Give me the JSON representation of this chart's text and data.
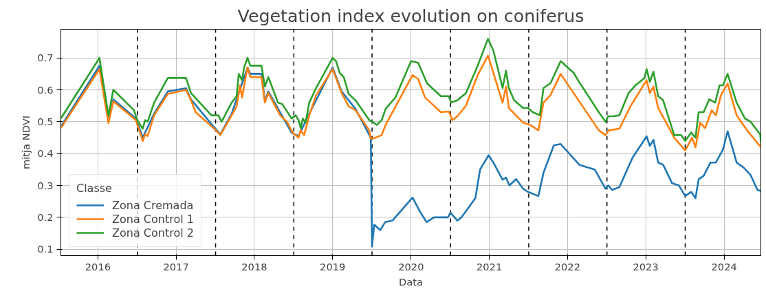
{
  "chart_data": {
    "type": "line",
    "title": "Vegetation index evolution on coniferus",
    "xlabel": "Data",
    "ylabel": "mitja NDVI",
    "legend_title": "Classe",
    "legend": "bottom left",
    "grid": true,
    "line_style": "solid",
    "xlim": [
      "2016-01-10",
      "2024-12-19"
    ],
    "ylim": [
      0.08,
      0.79
    ],
    "yticks": [
      0.1,
      0.2,
      0.3,
      0.4,
      0.5,
      0.6,
      0.7
    ],
    "xticks": [
      {
        "value": "2016-07-01",
        "label": "2016"
      },
      {
        "value": "2017-07-01",
        "label": "2017"
      },
      {
        "value": "2018-07-01",
        "label": "2018"
      },
      {
        "value": "2019-07-01",
        "label": "2019"
      },
      {
        "value": "2020-07-01",
        "label": "2020"
      },
      {
        "value": "2021-07-01",
        "label": "2021"
      },
      {
        "value": "2022-07-01",
        "label": "2022"
      },
      {
        "value": "2023-07-01",
        "label": "2023"
      },
      {
        "value": "2024-07-01",
        "label": "2024"
      }
    ],
    "ref_lines": [
      {
        "axis": "x",
        "value": "2017-01-01",
        "color": "#000000",
        "line_style": "dashed"
      },
      {
        "axis": "x",
        "value": "2018-01-01",
        "color": "#000000",
        "line_style": "dashed"
      },
      {
        "axis": "x",
        "value": "2019-01-01",
        "color": "#000000",
        "line_style": "dashed"
      },
      {
        "axis": "x",
        "value": "2020-01-01",
        "color": "#000000",
        "line_style": "dashed"
      },
      {
        "axis": "x",
        "value": "2021-01-01",
        "color": "#000000",
        "line_style": "dashed"
      },
      {
        "axis": "x",
        "value": "2022-01-01",
        "color": "#000000",
        "line_style": "dashed"
      },
      {
        "axis": "x",
        "value": "2023-01-01",
        "color": "#000000",
        "line_style": "dashed"
      },
      {
        "axis": "x",
        "value": "2024-01-01",
        "color": "#000000",
        "line_style": "dashed"
      }
    ],
    "series": [
      {
        "name": "Zona Cremada",
        "color": "#1f77b4",
        "x": [
          "2016-01-10",
          "2016-07-08",
          "2016-08-19",
          "2016-09-11",
          "2016-12-25",
          "2017-01-26",
          "2017-03-20",
          "2017-05-23",
          "2017-08-16",
          "2017-09-08",
          "2017-12-22",
          "2018-01-23",
          "2018-03-17",
          "2018-05-30",
          "2018-06-12",
          "2018-08-03",
          "2018-08-19",
          "2018-09-04",
          "2018-12-22",
          "2019-01-23",
          "2019-03-14",
          "2019-07-01",
          "2019-08-12",
          "2019-10-16",
          "2019-12-26",
          "2020-01-01",
          "2020-01-11",
          "2020-01-23",
          "2020-02-08",
          "2020-03-02",
          "2020-04-05",
          "2020-07-08",
          "2020-08-10",
          "2020-09-11",
          "2020-10-16",
          "2020-12-20",
          "2021-01-01",
          "2021-02-02",
          "2021-02-21",
          "2021-04-27",
          "2021-05-19",
          "2021-06-28",
          "2021-07-20",
          "2021-09-01",
          "2021-09-17",
          "2021-10-03",
          "2021-11-03",
          "2021-12-06",
          "2021-12-28",
          "2022-02-15",
          "2022-03-11",
          "2022-04-28",
          "2022-05-30",
          "2022-08-25",
          "2022-11-05",
          "2022-12-25",
          "2023-01-07",
          "2023-01-26",
          "2023-02-28",
          "2023-05-01",
          "2023-07-05",
          "2023-07-20",
          "2023-08-06",
          "2023-08-28",
          "2023-09-20",
          "2023-11-01",
          "2023-12-03",
          "2024-01-01",
          "2024-01-29",
          "2024-02-18",
          "2024-03-04",
          "2024-03-27",
          "2024-04-28",
          "2024-05-23",
          "2024-06-25",
          "2024-07-17",
          "2024-08-28",
          "2024-09-30",
          "2024-11-01",
          "2024-12-03",
          "2024-12-19"
        ],
        "values": [
          0.485,
          0.675,
          0.5,
          0.57,
          0.51,
          0.45,
          0.525,
          0.595,
          0.605,
          0.57,
          0.485,
          0.46,
          0.525,
          0.67,
          0.65,
          0.65,
          0.565,
          0.595,
          0.465,
          0.455,
          0.525,
          0.67,
          0.595,
          0.54,
          0.45,
          0.11,
          0.177,
          0.17,
          0.16,
          0.185,
          0.19,
          0.262,
          0.22,
          0.185,
          0.2,
          0.2,
          0.215,
          0.19,
          0.2,
          0.26,
          0.35,
          0.395,
          0.372,
          0.318,
          0.325,
          0.3,
          0.32,
          0.29,
          0.28,
          0.267,
          0.34,
          0.426,
          0.43,
          0.365,
          0.35,
          0.29,
          0.3,
          0.286,
          0.295,
          0.388,
          0.454,
          0.424,
          0.443,
          0.372,
          0.365,
          0.307,
          0.3,
          0.267,
          0.28,
          0.26,
          0.32,
          0.33,
          0.372,
          0.372,
          0.412,
          0.47,
          0.372,
          0.356,
          0.333,
          0.286,
          0.283
        ]
      },
      {
        "name": "Zona Control 1",
        "color": "#ff7f0e",
        "x": [
          "2016-01-10",
          "2016-07-08",
          "2016-08-19",
          "2016-09-11",
          "2016-12-25",
          "2017-01-26",
          "2017-02-06",
          "2017-02-18",
          "2017-03-20",
          "2017-05-23",
          "2017-08-16",
          "2017-09-08",
          "2017-09-30",
          "2017-12-22",
          "2018-01-23",
          "2018-03-17",
          "2018-04-09",
          "2018-04-25",
          "2018-05-04",
          "2018-05-30",
          "2018-06-12",
          "2018-08-03",
          "2018-08-19",
          "2018-09-04",
          "2018-10-29",
          "2018-11-30",
          "2018-12-26",
          "2019-01-23",
          "2019-02-02",
          "2019-02-18",
          "2019-03-14",
          "2019-04-15",
          "2019-07-01",
          "2019-08-12",
          "2019-09-14",
          "2019-10-16",
          "2019-12-19",
          "2019-12-26",
          "2020-01-17",
          "2020-02-15",
          "2020-03-04",
          "2020-07-08",
          "2020-08-03",
          "2020-09-04",
          "2020-11-17",
          "2020-12-24",
          "2021-01-10",
          "2021-02-02",
          "2021-03-14",
          "2021-05-08",
          "2021-06-25",
          "2021-09-01",
          "2021-09-17",
          "2021-09-30",
          "2021-12-06",
          "2022-01-07",
          "2022-02-15",
          "2022-03-11",
          "2022-04-12",
          "2022-05-30",
          "2022-11-24",
          "2022-12-25",
          "2023-01-10",
          "2023-02-28",
          "2023-04-22",
          "2023-07-05",
          "2023-07-20",
          "2023-08-06",
          "2023-08-28",
          "2023-11-11",
          "2024-01-01",
          "2024-02-02",
          "2024-02-18",
          "2024-03-11",
          "2024-04-03",
          "2024-05-04",
          "2024-05-23",
          "2024-06-16",
          "2024-07-17",
          "2024-08-28",
          "2024-10-16",
          "2024-12-19"
        ],
        "values": [
          0.48,
          0.665,
          0.496,
          0.564,
          0.505,
          0.44,
          0.46,
          0.455,
          0.52,
          0.587,
          0.6,
          0.567,
          0.53,
          0.48,
          0.458,
          0.52,
          0.548,
          0.614,
          0.576,
          0.67,
          0.64,
          0.64,
          0.56,
          0.59,
          0.52,
          0.5,
          0.466,
          0.45,
          0.473,
          0.458,
          0.52,
          0.583,
          0.665,
          0.59,
          0.548,
          0.536,
          0.473,
          0.447,
          0.45,
          0.458,
          0.49,
          0.646,
          0.634,
          0.576,
          0.53,
          0.532,
          0.505,
          0.517,
          0.55,
          0.646,
          0.707,
          0.56,
          0.61,
          0.543,
          0.497,
          0.49,
          0.473,
          0.56,
          0.583,
          0.65,
          0.473,
          0.458,
          0.473,
          0.478,
          0.55,
          0.63,
          0.59,
          0.61,
          0.543,
          0.45,
          0.41,
          0.45,
          0.42,
          0.497,
          0.48,
          0.536,
          0.52,
          0.583,
          0.62,
          0.52,
          0.473,
          0.42
        ]
      },
      {
        "name": "Zona Control 2",
        "color": "#2ca02c",
        "x": [
          "2016-01-10",
          "2016-07-08",
          "2016-08-19",
          "2016-09-11",
          "2016-12-16",
          "2017-01-01",
          "2017-01-26",
          "2017-02-06",
          "2017-02-18",
          "2017-03-20",
          "2017-05-23",
          "2017-08-16",
          "2017-09-08",
          "2017-10-19",
          "2017-12-13",
          "2018-01-14",
          "2018-01-29",
          "2018-03-17",
          "2018-04-09",
          "2018-04-19",
          "2018-05-04",
          "2018-05-14",
          "2018-05-30",
          "2018-06-12",
          "2018-08-03",
          "2018-08-19",
          "2018-09-04",
          "2018-10-19",
          "2018-11-08",
          "2018-12-22",
          "2019-01-10",
          "2019-01-23",
          "2019-02-02",
          "2019-02-12",
          "2019-02-25",
          "2019-03-14",
          "2019-04-15",
          "2019-07-01",
          "2019-07-17",
          "2019-08-03",
          "2019-08-22",
          "2019-09-14",
          "2019-10-16",
          "2019-12-19",
          "2020-01-01",
          "2020-01-23",
          "2020-02-15",
          "2020-03-04",
          "2020-04-19",
          "2020-07-01",
          "2020-08-03",
          "2020-09-14",
          "2020-11-17",
          "2020-12-24",
          "2021-01-04",
          "2021-02-02",
          "2021-03-14",
          "2021-05-08",
          "2021-06-25",
          "2021-07-20",
          "2021-09-01",
          "2021-09-17",
          "2021-09-30",
          "2021-10-25",
          "2021-12-06",
          "2021-12-28",
          "2022-01-20",
          "2022-02-22",
          "2022-03-11",
          "2022-04-12",
          "2022-05-30",
          "2022-07-30",
          "2022-08-19",
          "2022-11-24",
          "2022-12-25",
          "2023-01-07",
          "2023-01-26",
          "2023-02-28",
          "2023-04-12",
          "2023-05-14",
          "2023-06-25",
          "2023-07-05",
          "2023-07-20",
          "2023-08-06",
          "2023-08-28",
          "2023-09-20",
          "2023-11-11",
          "2023-12-13",
          "2024-01-01",
          "2024-01-29",
          "2024-02-18",
          "2024-03-04",
          "2024-03-27",
          "2024-04-22",
          "2024-05-20",
          "2024-06-09",
          "2024-06-25",
          "2024-07-17",
          "2024-08-28",
          "2024-10-06",
          "2024-11-01",
          "2024-12-16",
          "2024-12-19"
        ],
        "values": [
          0.51,
          0.7,
          0.52,
          0.6,
          0.536,
          0.505,
          0.478,
          0.505,
          0.5,
          0.56,
          0.637,
          0.637,
          0.59,
          0.56,
          0.52,
          0.52,
          0.5,
          0.56,
          0.58,
          0.65,
          0.63,
          0.67,
          0.7,
          0.676,
          0.676,
          0.61,
          0.64,
          0.56,
          0.555,
          0.51,
          0.52,
          0.505,
          0.48,
          0.51,
          0.497,
          0.56,
          0.606,
          0.7,
          0.69,
          0.653,
          0.64,
          0.587,
          0.567,
          0.505,
          0.5,
          0.49,
          0.505,
          0.54,
          0.576,
          0.69,
          0.685,
          0.62,
          0.58,
          0.58,
          0.56,
          0.567,
          0.59,
          0.676,
          0.76,
          0.723,
          0.606,
          0.66,
          0.606,
          0.567,
          0.543,
          0.543,
          0.53,
          0.52,
          0.606,
          0.62,
          0.69,
          0.653,
          0.63,
          0.53,
          0.5,
          0.517,
          0.517,
          0.52,
          0.59,
          0.614,
          0.637,
          0.665,
          0.625,
          0.657,
          0.58,
          0.567,
          0.458,
          0.458,
          0.44,
          0.466,
          0.45,
          0.53,
          0.53,
          0.57,
          0.56,
          0.614,
          0.614,
          0.65,
          0.56,
          0.51,
          0.5,
          0.46,
          0.435
        ]
      }
    ]
  }
}
